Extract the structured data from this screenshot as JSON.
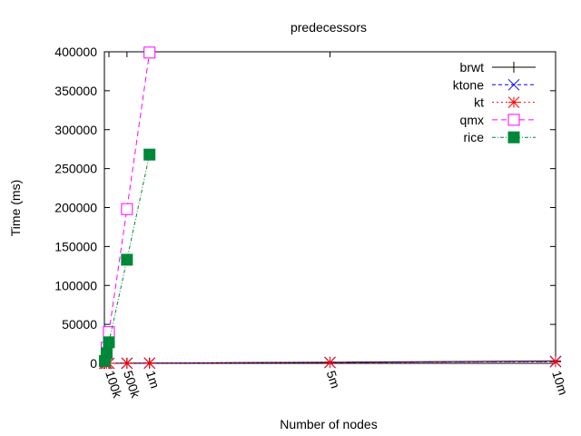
{
  "chart_data": {
    "type": "line",
    "title": "predecessors",
    "xlabel": "Number of nodes",
    "ylabel": "Time (ms)",
    "xlim": [
      0,
      10000000
    ],
    "ylim": [
      0,
      400000
    ],
    "x_ticks": [
      {
        "value": 100000,
        "label": "100k"
      },
      {
        "value": 500000,
        "label": "500k"
      },
      {
        "value": 1000000,
        "label": "1m"
      },
      {
        "value": 5000000,
        "label": "5m"
      },
      {
        "value": 10000000,
        "label": "10m"
      }
    ],
    "y_ticks": [
      0,
      50000,
      100000,
      150000,
      200000,
      250000,
      300000,
      350000,
      400000
    ],
    "legend_position": "top-right",
    "series": [
      {
        "name": "brwt",
        "color": "#000000",
        "marker": "plus",
        "dash": "",
        "points": [
          [
            10000,
            5
          ],
          [
            50000,
            20
          ],
          [
            100000,
            40
          ],
          [
            500000,
            200
          ],
          [
            1000000,
            400
          ],
          [
            5000000,
            1500
          ],
          [
            10000000,
            3000
          ]
        ]
      },
      {
        "name": "ktone",
        "color": "#0000ff",
        "marker": "x",
        "dash": "4,3",
        "points": [
          [
            10000,
            3
          ],
          [
            50000,
            15
          ],
          [
            100000,
            30
          ],
          [
            500000,
            150
          ],
          [
            1000000,
            300
          ],
          [
            5000000,
            1200
          ],
          [
            10000000,
            2500
          ]
        ]
      },
      {
        "name": "kt",
        "color": "#ff0000",
        "marker": "star",
        "dash": "2,3",
        "points": [
          [
            10000,
            2
          ],
          [
            50000,
            10
          ],
          [
            100000,
            20
          ],
          [
            500000,
            120
          ],
          [
            1000000,
            250
          ],
          [
            5000000,
            1000
          ],
          [
            10000000,
            2000
          ]
        ]
      },
      {
        "name": "qmx",
        "color": "#ff00ff",
        "marker": "open-square",
        "dash": "6,4",
        "points": [
          [
            10000,
            3000
          ],
          [
            50000,
            20000
          ],
          [
            100000,
            40000
          ],
          [
            500000,
            198000
          ],
          [
            1000000,
            399000
          ]
        ]
      },
      {
        "name": "rice",
        "color": "#00883a",
        "marker": "filled-square",
        "dash": "4,2,1,2",
        "points": [
          [
            10000,
            3000
          ],
          [
            50000,
            13000
          ],
          [
            100000,
            27000
          ],
          [
            500000,
            133000
          ],
          [
            1000000,
            268000
          ]
        ]
      }
    ]
  }
}
